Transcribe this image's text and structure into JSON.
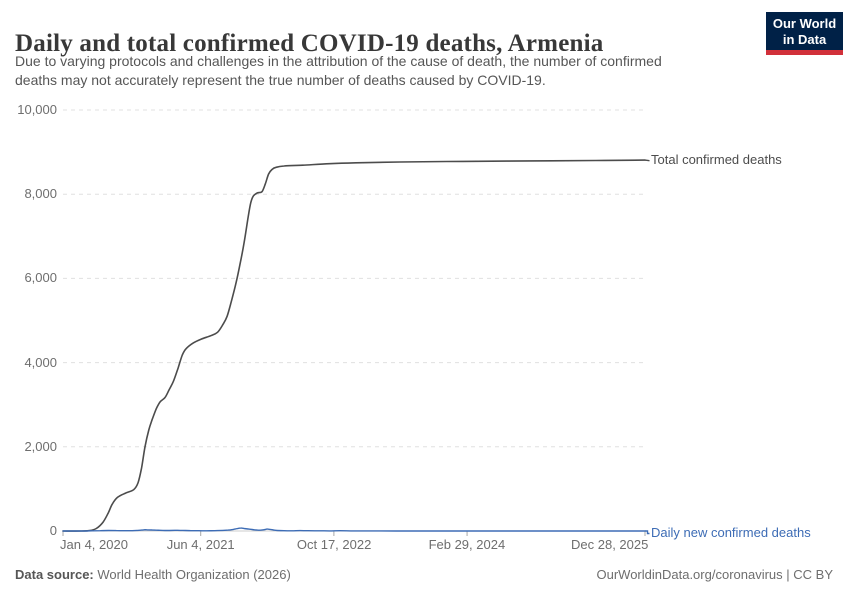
{
  "header": {
    "title": "Daily and total confirmed COVID-19 deaths, Armenia",
    "subtitle_line1": "Due to varying protocols and challenges in the attribution of the cause of death, the number of confirmed",
    "subtitle_line2": "deaths may not accurately represent the true number of deaths caused by COVID-19."
  },
  "logo": {
    "line1": "Our World",
    "line2": "in Data",
    "bg_color": "#002147",
    "stripe_color": "#d1303a"
  },
  "footer": {
    "source_label": "Data source:",
    "source_text": " World Health Organization (2026)",
    "right_text": "OurWorldinData.org/coronavirus | CC BY"
  },
  "chart_data": {
    "type": "line",
    "title": "Daily and total confirmed COVID-19 deaths, Armenia",
    "subtitle": "Due to varying protocols and challenges in the attribution of the cause of death, the number of confirmed deaths may not accurately represent the true number of deaths caused by COVID-19.",
    "grid": "dashed-horizontal",
    "legend_position": "right-of-line-end",
    "x_axis": {
      "unit": "days since Jan 4, 2020",
      "range_days": [
        0,
        2185
      ],
      "ticks": [
        {
          "label": "Jan 4, 2020",
          "day": 0,
          "align": "left"
        },
        {
          "label": "Jun 4, 2021",
          "day": 517,
          "align": "center"
        },
        {
          "label": "Oct 17, 2022",
          "day": 1017,
          "align": "center"
        },
        {
          "label": "Feb 29, 2024",
          "day": 1517,
          "align": "center"
        },
        {
          "label": "Dec 28, 2025",
          "day": 2185,
          "align": "right"
        }
      ]
    },
    "y_axis": {
      "range": [
        0,
        10000
      ],
      "ticks": [
        {
          "label": "0",
          "value": 0
        },
        {
          "label": "2,000",
          "value": 2000
        },
        {
          "label": "4,000",
          "value": 4000
        },
        {
          "label": "6,000",
          "value": 6000
        },
        {
          "label": "8,000",
          "value": 8000
        },
        {
          "label": "10,000",
          "value": 10000
        }
      ]
    },
    "series": [
      {
        "name": "Total confirmed deaths",
        "color": "#4c4c4c",
        "points": [
          [
            0,
            0
          ],
          [
            70,
            0
          ],
          [
            100,
            10
          ],
          [
            125,
            60
          ],
          [
            150,
            210
          ],
          [
            170,
            430
          ],
          [
            185,
            640
          ],
          [
            205,
            800
          ],
          [
            235,
            900
          ],
          [
            265,
            980
          ],
          [
            282,
            1150
          ],
          [
            295,
            1500
          ],
          [
            308,
            2000
          ],
          [
            322,
            2400
          ],
          [
            335,
            2650
          ],
          [
            350,
            2900
          ],
          [
            365,
            3070
          ],
          [
            383,
            3170
          ],
          [
            398,
            3350
          ],
          [
            415,
            3560
          ],
          [
            432,
            3870
          ],
          [
            448,
            4180
          ],
          [
            462,
            4330
          ],
          [
            490,
            4470
          ],
          [
            520,
            4560
          ],
          [
            555,
            4640
          ],
          [
            580,
            4720
          ],
          [
            600,
            4900
          ],
          [
            616,
            5100
          ],
          [
            632,
            5450
          ],
          [
            650,
            5900
          ],
          [
            665,
            6350
          ],
          [
            680,
            6850
          ],
          [
            695,
            7450
          ],
          [
            705,
            7800
          ],
          [
            715,
            7960
          ],
          [
            730,
            8030
          ],
          [
            747,
            8060
          ],
          [
            760,
            8250
          ],
          [
            772,
            8480
          ],
          [
            785,
            8590
          ],
          [
            800,
            8640
          ],
          [
            830,
            8670
          ],
          [
            900,
            8690
          ],
          [
            1000,
            8725
          ],
          [
            1100,
            8745
          ],
          [
            1265,
            8765
          ],
          [
            1500,
            8780
          ],
          [
            1750,
            8790
          ],
          [
            2000,
            8800
          ],
          [
            2185,
            8810
          ]
        ]
      },
      {
        "name": "Daily new confirmed deaths",
        "color": "#3d6cb5",
        "points": [
          [
            0,
            0
          ],
          [
            80,
            1
          ],
          [
            110,
            5
          ],
          [
            140,
            8
          ],
          [
            170,
            12
          ],
          [
            200,
            10
          ],
          [
            230,
            7
          ],
          [
            260,
            8
          ],
          [
            280,
            14
          ],
          [
            295,
            22
          ],
          [
            308,
            30
          ],
          [
            320,
            26
          ],
          [
            335,
            24
          ],
          [
            350,
            20
          ],
          [
            365,
            16
          ],
          [
            383,
            12
          ],
          [
            400,
            13
          ],
          [
            420,
            16
          ],
          [
            440,
            14
          ],
          [
            460,
            12
          ],
          [
            480,
            8
          ],
          [
            510,
            6
          ],
          [
            540,
            5
          ],
          [
            570,
            8
          ],
          [
            600,
            14
          ],
          [
            620,
            22
          ],
          [
            640,
            38
          ],
          [
            655,
            58
          ],
          [
            668,
            70
          ],
          [
            680,
            60
          ],
          [
            695,
            48
          ],
          [
            710,
            35
          ],
          [
            725,
            24
          ],
          [
            740,
            18
          ],
          [
            755,
            30
          ],
          [
            766,
            45
          ],
          [
            778,
            38
          ],
          [
            790,
            24
          ],
          [
            805,
            12
          ],
          [
            830,
            7
          ],
          [
            860,
            5
          ],
          [
            890,
            9
          ],
          [
            920,
            7
          ],
          [
            960,
            5
          ],
          [
            1000,
            3
          ],
          [
            1040,
            6
          ],
          [
            1080,
            3
          ],
          [
            1150,
            2
          ],
          [
            1250,
            1
          ],
          [
            1400,
            1
          ],
          [
            1600,
            1
          ],
          [
            1800,
            0
          ],
          [
            2000,
            0
          ],
          [
            2185,
            0
          ]
        ]
      }
    ]
  }
}
